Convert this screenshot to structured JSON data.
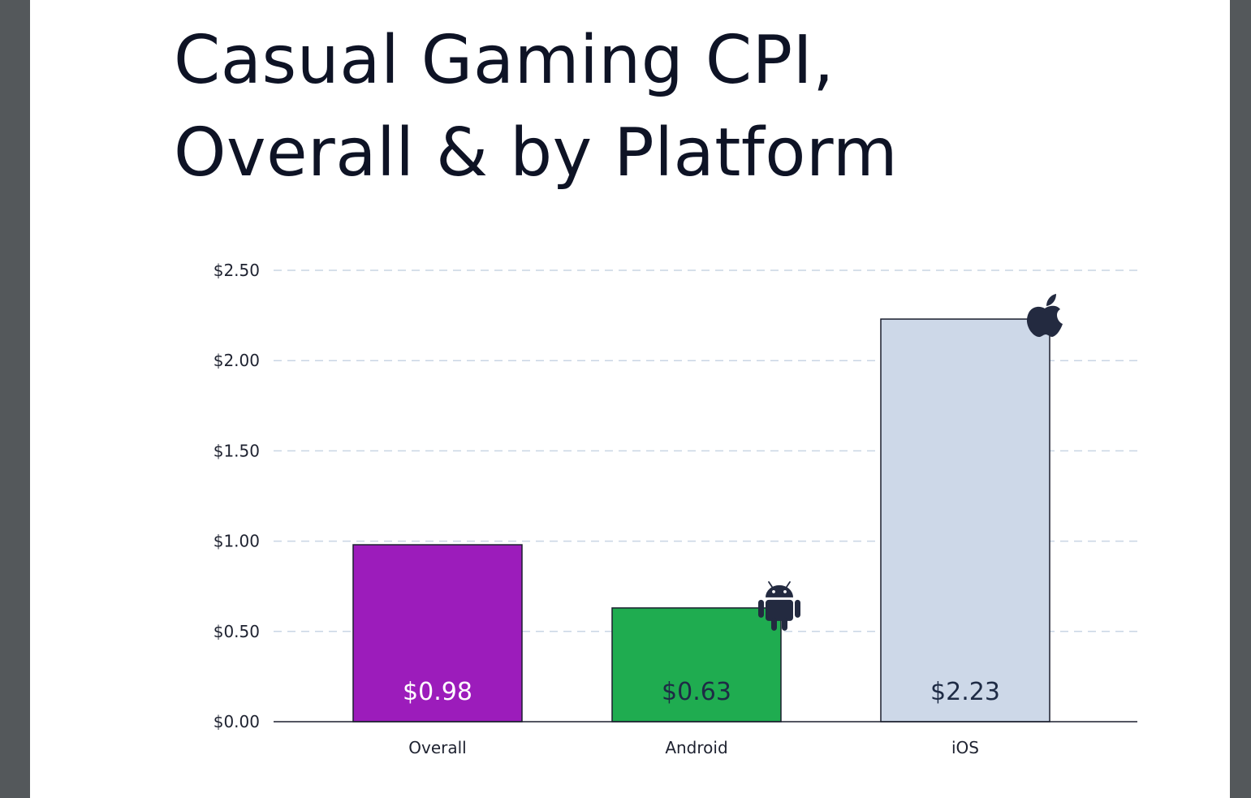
{
  "colors": {
    "overall_bar": "#9c1cbb",
    "android_bar": "#1fac50",
    "ios_bar": "#cdd8e8",
    "bar_outline": "#1b1f2e",
    "gridline": "#c9d5e4",
    "icon": "#232a40",
    "text_dark": "#0e1325",
    "value_on_dark": "#ffffff",
    "value_on_light": "#1e2b45"
  },
  "chart_data": {
    "type": "bar",
    "title": "Casual Gaming CPI, Overall & by Platform",
    "title_lines": [
      "Casual Gaming CPI,",
      "Overall & by Platform"
    ],
    "categories": [
      "Overall",
      "Android",
      "iOS"
    ],
    "values": [
      0.98,
      0.63,
      2.23
    ],
    "value_labels": [
      "$0.98",
      "$0.63",
      "$2.23"
    ],
    "bar_icons": [
      "",
      "android-icon",
      "apple-icon"
    ],
    "ylim": [
      0,
      2.5
    ],
    "yticks": [
      0,
      0.5,
      1.0,
      1.5,
      2.0,
      2.5
    ],
    "ytick_labels": [
      "$0.00",
      "$0.50",
      "$1.00",
      "$1.50",
      "$2.00",
      "$2.50"
    ],
    "grid": true,
    "grid_style": "dashed",
    "legend": "none",
    "xlabel": "",
    "ylabel": ""
  }
}
